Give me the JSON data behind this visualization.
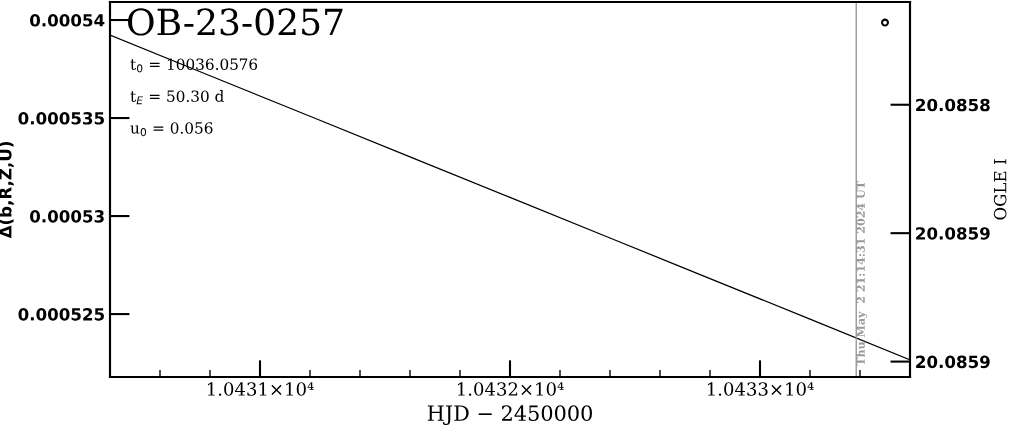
{
  "chart_data": {
    "type": "line",
    "title": "OB-23-0257",
    "xlabel": "HJD − 2450000",
    "ylabel": "Δ(b,R,Z,U)",
    "y2label": "OGLE I",
    "x": [
      10430.4,
      10430.8,
      10431.2,
      10431.6,
      10432.0,
      10432.4,
      10432.8,
      10433.2,
      10433.6
    ],
    "series": [
      {
        "color": "#000000",
        "line_style": "solid",
        "values": [
          0.00053923,
          0.00053716,
          0.00053509,
          0.00053302,
          0.00053095,
          0.00052888,
          0.00052681,
          0.00052474,
          0.00052266
        ]
      },
      {
        "type": "scatter",
        "axis": "y2",
        "marker": "circle",
        "color": "#000000",
        "x": [
          10433.5
        ],
        "values": [
          20.085768
        ]
      }
    ],
    "xlim": [
      10430.4,
      10433.6
    ],
    "xticks": [
      {
        "value": 10431,
        "label": "1.0431×10⁴"
      },
      {
        "value": 10432,
        "label": "1.0432×10⁴"
      },
      {
        "value": 10433,
        "label": "1.0433×10⁴"
      }
    ],
    "ylim": [
      0.00052179,
      0.00054092
    ],
    "yticks": [
      {
        "value": 0.000525,
        "label": "0.000525"
      },
      {
        "value": 0.00053,
        "label": "0.00053"
      },
      {
        "value": 0.000535,
        "label": "0.000535"
      },
      {
        "value": 0.00054,
        "label": "0.00054"
      }
    ],
    "y2lim": [
      20.085906,
      20.08576
    ],
    "y2ticks": [
      {
        "value": 20.0858,
        "label": "20.0858"
      },
      {
        "value": 20.08585,
        "label": "20.0859"
      },
      {
        "value": 20.0859,
        "label": "20.0859"
      }
    ],
    "ref_lines": [
      {
        "axis": "x",
        "value": 10433.385,
        "color": "#999999"
      }
    ],
    "annotations": [
      "t$_{0}$ = 10036.0576",
      "t$_{E}$ = 50.30 d",
      "u$_{0}$ = 0.056",
      "Thu May  2 21:14:31 2024 UT"
    ],
    "grid": false,
    "legend": false
  }
}
